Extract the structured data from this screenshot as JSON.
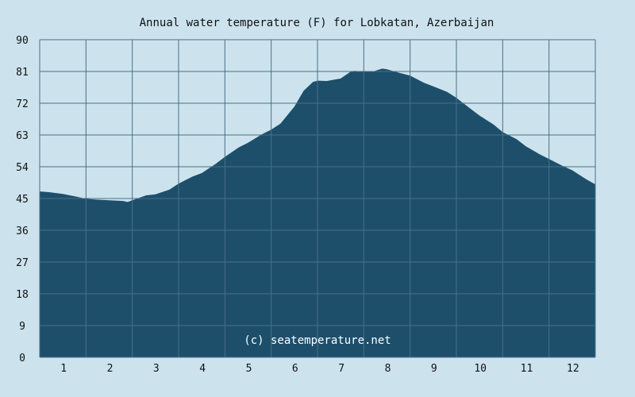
{
  "colors": {
    "background": "#cce3ee",
    "area": "#1d4f6b",
    "grid": "#4a6f86",
    "watermark_text": "#ffffff"
  },
  "chart_data": {
    "type": "area",
    "title": "Annual water temperature (F) for Lobkatan, Azerbaijan",
    "watermark": "(c) seatemperature.net",
    "xlabel": "",
    "ylabel": "",
    "x_tick_labels": [
      "1",
      "2",
      "3",
      "4",
      "5",
      "6",
      "7",
      "8",
      "9",
      "10",
      "11",
      "12"
    ],
    "y_tick_labels": [
      "0",
      "9",
      "18",
      "27",
      "36",
      "45",
      "54",
      "63",
      "72",
      "81",
      "90"
    ],
    "ylim": [
      0,
      90
    ],
    "xlim": [
      0.5,
      12.5
    ],
    "grid": true,
    "x": [
      0.5,
      0.7,
      1.0,
      1.3,
      1.5,
      1.7,
      2.0,
      2.3,
      2.4,
      2.5,
      2.8,
      3.0,
      3.3,
      3.5,
      3.8,
      4.0,
      4.3,
      4.5,
      4.8,
      5.0,
      5.3,
      5.5,
      5.7,
      6.0,
      6.2,
      6.4,
      6.5,
      6.7,
      7.0,
      7.2,
      7.3,
      7.5,
      7.7,
      7.9,
      8.0,
      8.3,
      8.5,
      8.8,
      9.0,
      9.3,
      9.5,
      9.8,
      10.0,
      10.3,
      10.5,
      10.8,
      11.0,
      11.3,
      11.5,
      11.8,
      12.0,
      12.3,
      12.5
    ],
    "values": [
      47.0,
      46.8,
      46.3,
      45.5,
      44.9,
      44.7,
      44.5,
      44.3,
      44.0,
      44.5,
      45.9,
      46.2,
      47.5,
      49.2,
      51.2,
      52.2,
      54.8,
      56.8,
      59.5,
      60.8,
      63.2,
      64.5,
      66.2,
      71.0,
      75.5,
      78.0,
      78.4,
      78.3,
      79.0,
      80.8,
      81.2,
      80.9,
      81.0,
      81.8,
      81.6,
      80.5,
      79.8,
      77.8,
      76.8,
      75.2,
      73.5,
      70.5,
      68.5,
      66.0,
      63.8,
      61.8,
      59.8,
      57.5,
      56.2,
      54.2,
      53.0,
      50.5,
      49.0
    ]
  }
}
